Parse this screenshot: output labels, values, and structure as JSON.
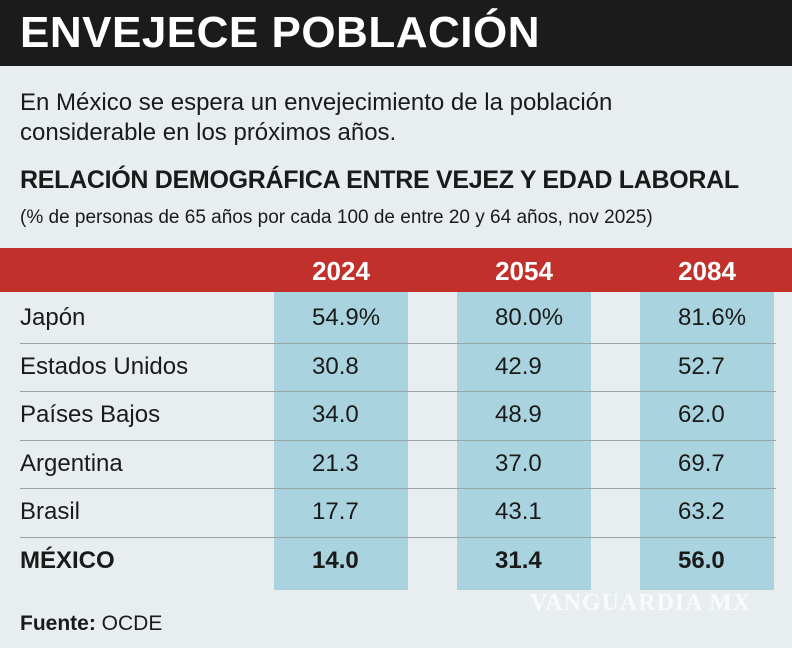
{
  "header": {
    "title": "ENVEJECE POBLACIÓN"
  },
  "intro": "En México se espera un envejecimiento de la población considerable en los próximos años.",
  "table": {
    "title": "RELACIÓN DEMOGRÁFICA ENTRE VEJEZ Y EDAD LABORAL",
    "subtitle": "(% de personas de 65 años por cada 100 de entre 20 y 64 años, nov 2025)",
    "columns": [
      "2024",
      "2054",
      "2084"
    ],
    "rows": [
      [
        "Japón",
        "54.9%",
        "80.0%",
        "81.6%"
      ],
      [
        "Estados Unidos",
        "30.8",
        "42.9",
        "52.7"
      ],
      [
        "Países Bajos",
        "34.0",
        "48.9",
        "62.0"
      ],
      [
        "Argentina",
        "21.3",
        "37.0",
        "69.7"
      ],
      [
        "Brasil",
        "17.7",
        "43.1",
        "63.2"
      ],
      [
        "MÉXICO",
        "14.0",
        "31.4",
        "56.0"
      ]
    ]
  },
  "source": {
    "label": "Fuente:",
    "text": "OCDE"
  },
  "watermark": "VANGUARDIA MX"
}
